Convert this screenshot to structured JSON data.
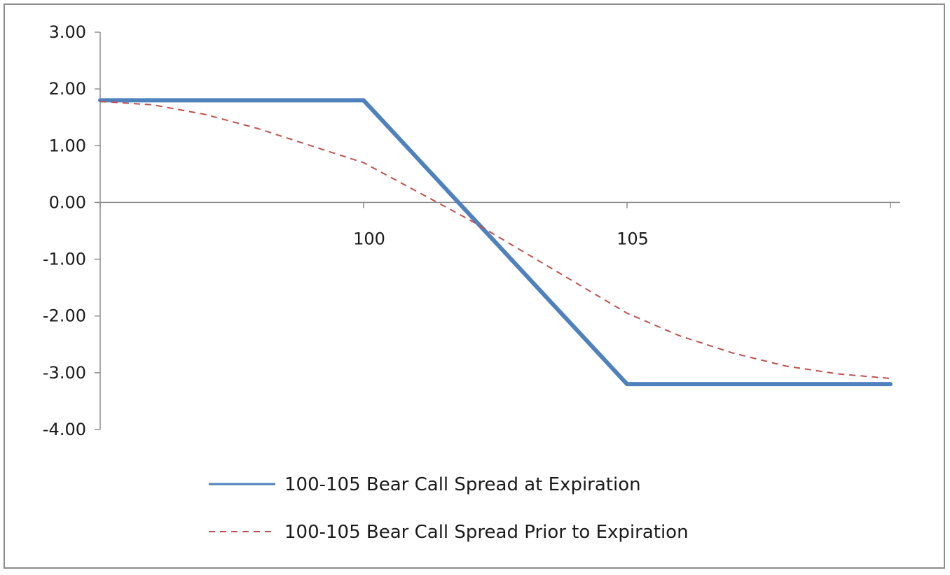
{
  "chart_data": {
    "type": "line",
    "title": "",
    "xlabel": "",
    "ylabel": "",
    "x_axis": {
      "range": [
        95,
        110
      ],
      "tick_marks": [
        95,
        100,
        105,
        110
      ],
      "tick_labels": [
        {
          "x": 100,
          "label": "100"
        },
        {
          "x": 105,
          "label": "105"
        }
      ]
    },
    "y_axis": {
      "range": [
        -4.0,
        3.0
      ],
      "ticks": [
        "3.00",
        "2.00",
        "1.00",
        "0.00",
        "-1.00",
        "-2.00",
        "-3.00",
        "-4.00"
      ]
    },
    "grid": false,
    "legend_position": "bottom",
    "series": [
      {
        "name": "100-105 Bear Call Spread at Expiration",
        "color": "#4f81bd",
        "style": "solid",
        "points": [
          [
            95,
            1.8
          ],
          [
            100,
            1.8
          ],
          [
            100.5,
            1.3
          ],
          [
            101,
            0.8
          ],
          [
            101.5,
            0.3
          ],
          [
            102,
            -0.2
          ],
          [
            102.5,
            -0.7
          ],
          [
            103,
            -1.2
          ],
          [
            103.5,
            -1.7
          ],
          [
            104,
            -2.2
          ],
          [
            104.5,
            -2.7
          ],
          [
            105,
            -3.2
          ],
          [
            110,
            -3.2
          ]
        ]
      },
      {
        "name": "100-105 Bear Call Spread Prior to Expiration",
        "color": "#c0504d",
        "style": "dashed",
        "points": [
          [
            95,
            1.78
          ],
          [
            96,
            1.72
          ],
          [
            97,
            1.55
          ],
          [
            98,
            1.3
          ],
          [
            99,
            1.0
          ],
          [
            100,
            0.7
          ],
          [
            101,
            0.2
          ],
          [
            102,
            -0.3
          ],
          [
            103,
            -0.85
          ],
          [
            104,
            -1.4
          ],
          [
            105,
            -1.95
          ],
          [
            106,
            -2.35
          ],
          [
            107,
            -2.65
          ],
          [
            108,
            -2.88
          ],
          [
            109,
            -3.02
          ],
          [
            110,
            -3.1
          ]
        ]
      }
    ]
  }
}
